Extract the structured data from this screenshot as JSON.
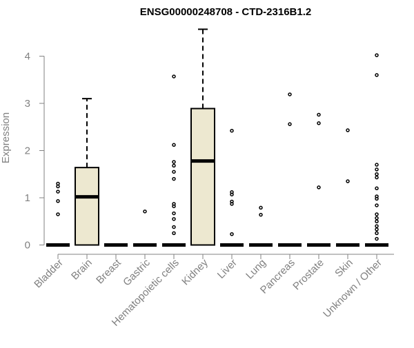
{
  "chart_data": {
    "type": "box",
    "title": "ENSG00000248708 - CTD-2316B1.2",
    "xlabel": "",
    "ylabel": "Expression",
    "ylim": [
      0,
      4.5
    ],
    "yticks": [
      "0",
      "1",
      "2",
      "3",
      "4"
    ],
    "categories": [
      "Bladder",
      "Brain",
      "Breast",
      "Gastric",
      "Hematopoietic cells",
      "Kidney",
      "Liver",
      "Lung",
      "Pancreas",
      "Prostate",
      "Skin",
      "Unknown / Other"
    ],
    "boxes": [
      {
        "category": "Bladder",
        "q1": 0,
        "median": 0,
        "q3": 0,
        "whisker_low": 0,
        "whisker_high": 0,
        "outliers": [
          0.65,
          0.93,
          1.13,
          1.24,
          1.3
        ]
      },
      {
        "category": "Brain",
        "q1": 0,
        "median": 1.02,
        "q3": 1.64,
        "whisker_low": 0,
        "whisker_high": 3.1,
        "outliers": []
      },
      {
        "category": "Breast",
        "q1": 0,
        "median": 0,
        "q3": 0,
        "whisker_low": 0,
        "whisker_high": 0,
        "outliers": []
      },
      {
        "category": "Gastric",
        "q1": 0,
        "median": 0,
        "q3": 0,
        "whisker_low": 0,
        "whisker_high": 0,
        "outliers": [
          0.71
        ]
      },
      {
        "category": "Hematopoietic cells",
        "q1": 0,
        "median": 0,
        "q3": 0,
        "whisker_low": 0,
        "whisker_high": 0,
        "outliers": [
          0.25,
          0.38,
          0.55,
          0.67,
          0.82,
          0.87,
          1.4,
          1.55,
          1.68,
          1.76,
          2.12,
          3.57
        ]
      },
      {
        "category": "Kidney",
        "q1": 0,
        "median": 1.78,
        "q3": 2.89,
        "whisker_low": 0,
        "whisker_high": 4.57,
        "outliers": []
      },
      {
        "category": "Liver",
        "q1": 0,
        "median": 0,
        "q3": 0,
        "whisker_low": 0,
        "whisker_high": 0,
        "outliers": [
          0.23,
          0.87,
          0.92,
          1.07,
          1.12,
          2.42
        ]
      },
      {
        "category": "Lung",
        "q1": 0,
        "median": 0,
        "q3": 0,
        "whisker_low": 0,
        "whisker_high": 0,
        "outliers": [
          0.64,
          0.79
        ]
      },
      {
        "category": "Pancreas",
        "q1": 0,
        "median": 0,
        "q3": 0,
        "whisker_low": 0,
        "whisker_high": 0,
        "outliers": [
          2.56,
          3.19
        ]
      },
      {
        "category": "Prostate",
        "q1": 0,
        "median": 0,
        "q3": 0,
        "whisker_low": 0,
        "whisker_high": 0,
        "outliers": [
          1.22,
          2.58,
          2.76
        ]
      },
      {
        "category": "Skin",
        "q1": 0,
        "median": 0,
        "q3": 0,
        "whisker_low": 0,
        "whisker_high": 0,
        "outliers": [
          1.35,
          2.43
        ]
      },
      {
        "category": "Unknown / Other",
        "q1": 0,
        "median": 0,
        "q3": 0,
        "whisker_low": 0,
        "whisker_high": 0,
        "outliers": [
          0.13,
          0.25,
          0.33,
          0.4,
          0.5,
          0.57,
          0.65,
          0.84,
          0.98,
          1.03,
          1.2,
          1.43,
          1.5,
          1.6,
          1.7,
          3.6,
          4.02
        ]
      }
    ],
    "grid": false,
    "legend": "none",
    "box_fill": "#ede8d0",
    "box_stroke": "#000000",
    "axis_color": "#808080"
  }
}
